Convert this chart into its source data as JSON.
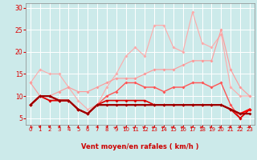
{
  "x": [
    0,
    1,
    2,
    3,
    4,
    5,
    6,
    7,
    8,
    9,
    10,
    11,
    12,
    13,
    14,
    15,
    16,
    17,
    18,
    19,
    20,
    21,
    22,
    23
  ],
  "series": [
    {
      "y": [
        13,
        16,
        15,
        15,
        12,
        9,
        7,
        8,
        12,
        15,
        19,
        21,
        19,
        26,
        26,
        21,
        20,
        29,
        22,
        21,
        24,
        12,
        10,
        10
      ],
      "color": "#ffaaaa",
      "marker": "D",
      "markersize": 2.0,
      "linewidth": 0.8,
      "zorder": 2
    },
    {
      "y": [
        13,
        10,
        10,
        11,
        12,
        11,
        11,
        12,
        13,
        14,
        14,
        14,
        15,
        16,
        16,
        16,
        17,
        18,
        18,
        18,
        25,
        16,
        12,
        10
      ],
      "color": "#ff9999",
      "marker": "D",
      "markersize": 2.0,
      "linewidth": 0.8,
      "zorder": 2
    },
    {
      "y": [
        8,
        10,
        9,
        9,
        9,
        7,
        6,
        8,
        10,
        11,
        13,
        13,
        12,
        12,
        11,
        12,
        12,
        13,
        13,
        12,
        13,
        8,
        5,
        7
      ],
      "color": "#ff5555",
      "marker": "D",
      "markersize": 2.0,
      "linewidth": 1.0,
      "zorder": 3
    },
    {
      "y": [
        8,
        10,
        9,
        9,
        9,
        7,
        6,
        8,
        9,
        9,
        9,
        9,
        9,
        8,
        8,
        8,
        8,
        8,
        8,
        8,
        8,
        7,
        5,
        7
      ],
      "color": "#dd0000",
      "marker": "D",
      "markersize": 2.0,
      "linewidth": 1.2,
      "zorder": 4
    },
    {
      "y": [
        8,
        10,
        10,
        9,
        9,
        7,
        6,
        8,
        8,
        8,
        8,
        8,
        8,
        8,
        8,
        8,
        8,
        8,
        8,
        8,
        8,
        7,
        6,
        7
      ],
      "color": "#ff0000",
      "marker": "D",
      "markersize": 2.0,
      "linewidth": 1.5,
      "zorder": 4
    },
    {
      "y": [
        8,
        10,
        10,
        9,
        9,
        7,
        6,
        8,
        8,
        8,
        8,
        8,
        8,
        8,
        8,
        8,
        8,
        8,
        8,
        8,
        8,
        7,
        6,
        6
      ],
      "color": "#990000",
      "marker": "D",
      "markersize": 2.0,
      "linewidth": 1.5,
      "zorder": 5
    }
  ],
  "xlabel": "Vent moyen/en rafales ( km/h )",
  "xlim": [
    -0.5,
    23.5
  ],
  "ylim": [
    3.5,
    31
  ],
  "yticks": [
    5,
    10,
    15,
    20,
    25,
    30
  ],
  "xticks": [
    0,
    1,
    2,
    3,
    4,
    5,
    6,
    7,
    8,
    9,
    10,
    11,
    12,
    13,
    14,
    15,
    16,
    17,
    18,
    19,
    20,
    21,
    22,
    23
  ],
  "bg_color": "#cceaea",
  "grid_color": "#ffffff",
  "tick_color": "#dd0000",
  "label_color": "#cc0000",
  "arrow_angles": [
    225,
    210,
    205,
    195,
    185,
    175,
    165,
    155,
    150,
    140,
    135,
    140,
    130,
    125,
    125,
    130,
    120,
    115,
    110,
    110,
    105,
    100,
    85,
    80
  ]
}
